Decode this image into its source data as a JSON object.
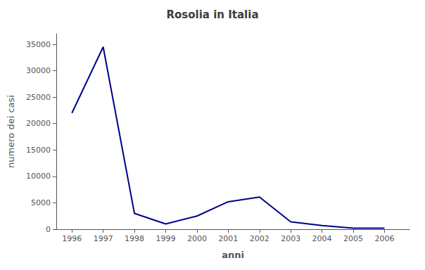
{
  "chart_data": {
    "type": "line",
    "title": "Rosolia in Italia",
    "xlabel": "anni",
    "ylabel": "numero dei casi",
    "x": [
      1996,
      1997,
      1998,
      1999,
      2000,
      2001,
      2002,
      2003,
      2004,
      2005,
      2006
    ],
    "values": [
      22000,
      34500,
      3000,
      1000,
      2500,
      5200,
      6100,
      1400,
      700,
      200,
      200
    ],
    "color": "#00008B",
    "xlim": [
      1995.5,
      2006.8
    ],
    "xticks": [
      1996,
      1997,
      1998,
      1999,
      2000,
      2001,
      2002,
      2003,
      2004,
      2005,
      2006
    ],
    "ylim": [
      0,
      37000
    ],
    "yticks": [
      0,
      5000,
      10000,
      15000,
      20000,
      25000,
      30000,
      35000
    ],
    "grid": false
  }
}
